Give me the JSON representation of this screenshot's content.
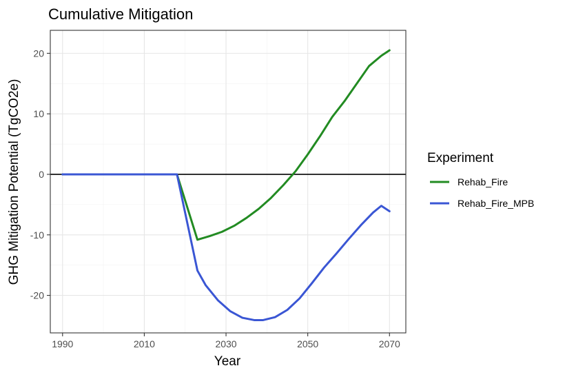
{
  "chart_data": {
    "type": "line",
    "title": "Cumulative Mitigation",
    "xlabel": "Year",
    "ylabel": "GHG Mitigation Potential (TgCO2e)",
    "xlim": [
      1987,
      2074
    ],
    "ylim": [
      -26.2,
      23.8
    ],
    "xticks": [
      1990,
      2010,
      2030,
      2050,
      2070
    ],
    "yticks": [
      -20,
      -10,
      0,
      10,
      20
    ],
    "reference_line_y": 0,
    "grid": true,
    "legend": {
      "title": "Experiment",
      "position": "right"
    },
    "series": [
      {
        "name": "Rehab_Fire",
        "color": "#228b22",
        "x": [
          1990,
          2018,
          2023,
          2026,
          2029,
          2032,
          2035,
          2038,
          2041,
          2044,
          2047,
          2050,
          2053,
          2056,
          2059,
          2062,
          2065,
          2068,
          2070
        ],
        "y": [
          0,
          0,
          -10.8,
          -10.2,
          -9.5,
          -8.5,
          -7.2,
          -5.7,
          -3.9,
          -1.8,
          0.5,
          3.3,
          6.3,
          9.5,
          12.1,
          15.0,
          17.9,
          19.6,
          20.5
        ]
      },
      {
        "name": "Rehab_Fire_MPB",
        "color": "#3a56d4",
        "x": [
          1990,
          2018,
          2023,
          2025,
          2028,
          2031,
          2034,
          2037,
          2039,
          2042,
          2045,
          2048,
          2051,
          2054,
          2057,
          2060,
          2063,
          2066,
          2068,
          2070
        ],
        "y": [
          0,
          0,
          -15.9,
          -18.3,
          -20.8,
          -22.6,
          -23.7,
          -24.1,
          -24.1,
          -23.6,
          -22.4,
          -20.5,
          -18.0,
          -15.4,
          -13.1,
          -10.7,
          -8.4,
          -6.3,
          -5.2,
          -6.1
        ]
      }
    ]
  }
}
